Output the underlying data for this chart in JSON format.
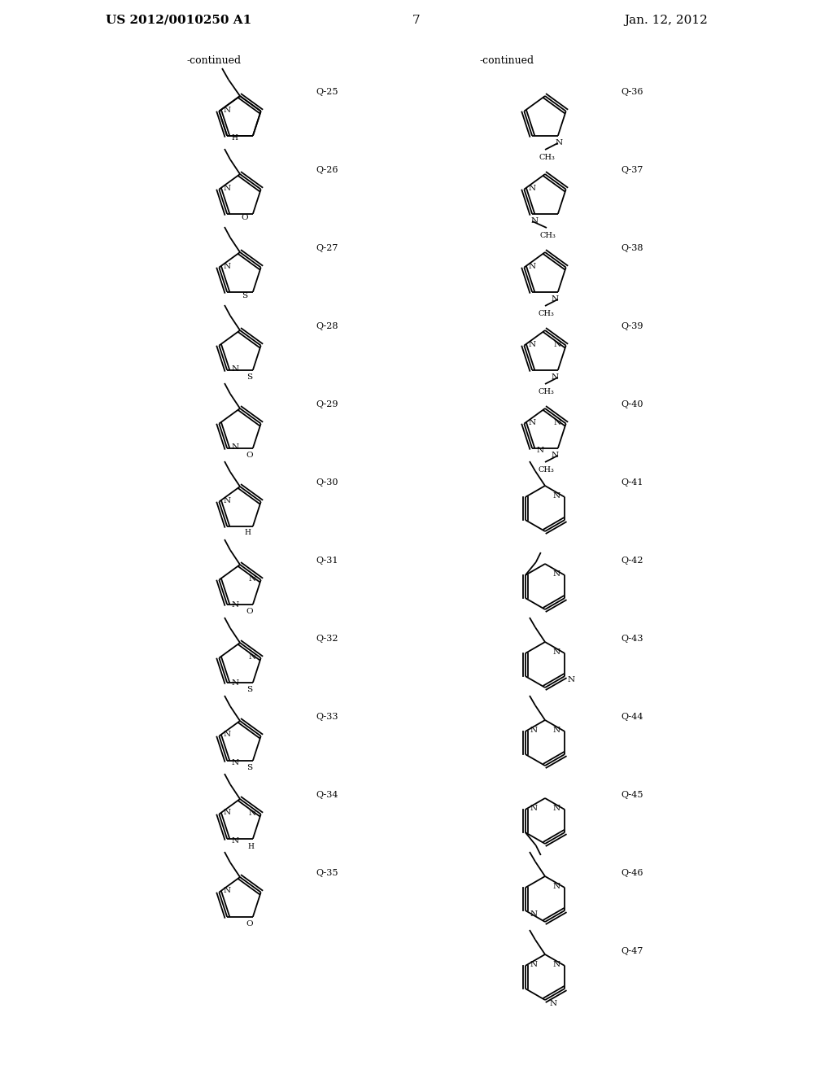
{
  "title_left": "US 2012/0010250 A1",
  "title_right": "Jan. 12, 2012",
  "page_number": "7",
  "bg_color": "#ffffff",
  "continued_left": "-continued",
  "continued_right": "-continued"
}
